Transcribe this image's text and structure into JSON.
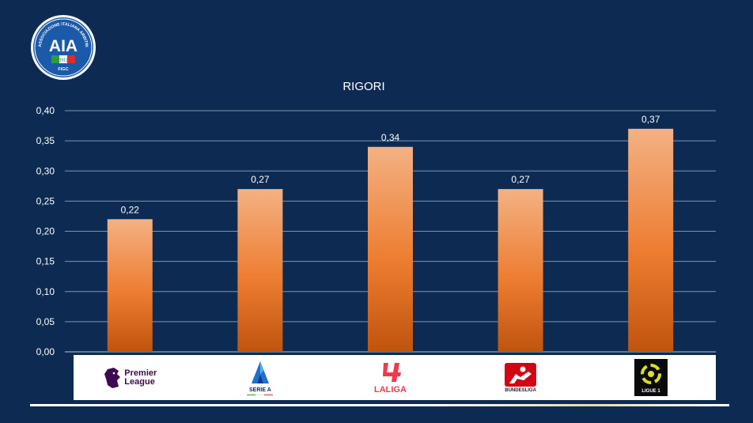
{
  "logo": {
    "name": "AIA",
    "ring_text": "ASSOCIAZIONE ITALIANA ARBITRI",
    "year": "1911",
    "footer": "FIGC"
  },
  "leagues": [
    {
      "id": "premier-league",
      "line1": "Premier",
      "line2": "League"
    },
    {
      "id": "serie-a",
      "label": "SERIE A"
    },
    {
      "id": "laliga",
      "label": "LALIGA"
    },
    {
      "id": "bundesliga",
      "label": "BUNDESLIGA"
    },
    {
      "id": "ligue-1",
      "label": "LIGUE 1"
    }
  ],
  "colors": {
    "background": "#0d2b52",
    "bar_top": "#f4b183",
    "bar_mid": "#ed7d31",
    "bar_bottom": "#c55a11",
    "gridline": "#8ea3bf",
    "text": "#ffffff"
  },
  "chart_data": {
    "type": "bar",
    "title": "RIGORI",
    "categories": [
      "Premier League",
      "Serie A",
      "LaLiga",
      "Bundesliga",
      "Ligue 1"
    ],
    "values": [
      0.22,
      0.27,
      0.34,
      0.27,
      0.37
    ],
    "value_labels": [
      "0,22",
      "0,27",
      "0,34",
      "0,27",
      "0,37"
    ],
    "yticks": [
      "0,00",
      "0,05",
      "0,10",
      "0,15",
      "0,20",
      "0,25",
      "0,30",
      "0,35",
      "0,40"
    ],
    "ylim": [
      0,
      0.4
    ],
    "grid": true,
    "legend": "none"
  }
}
